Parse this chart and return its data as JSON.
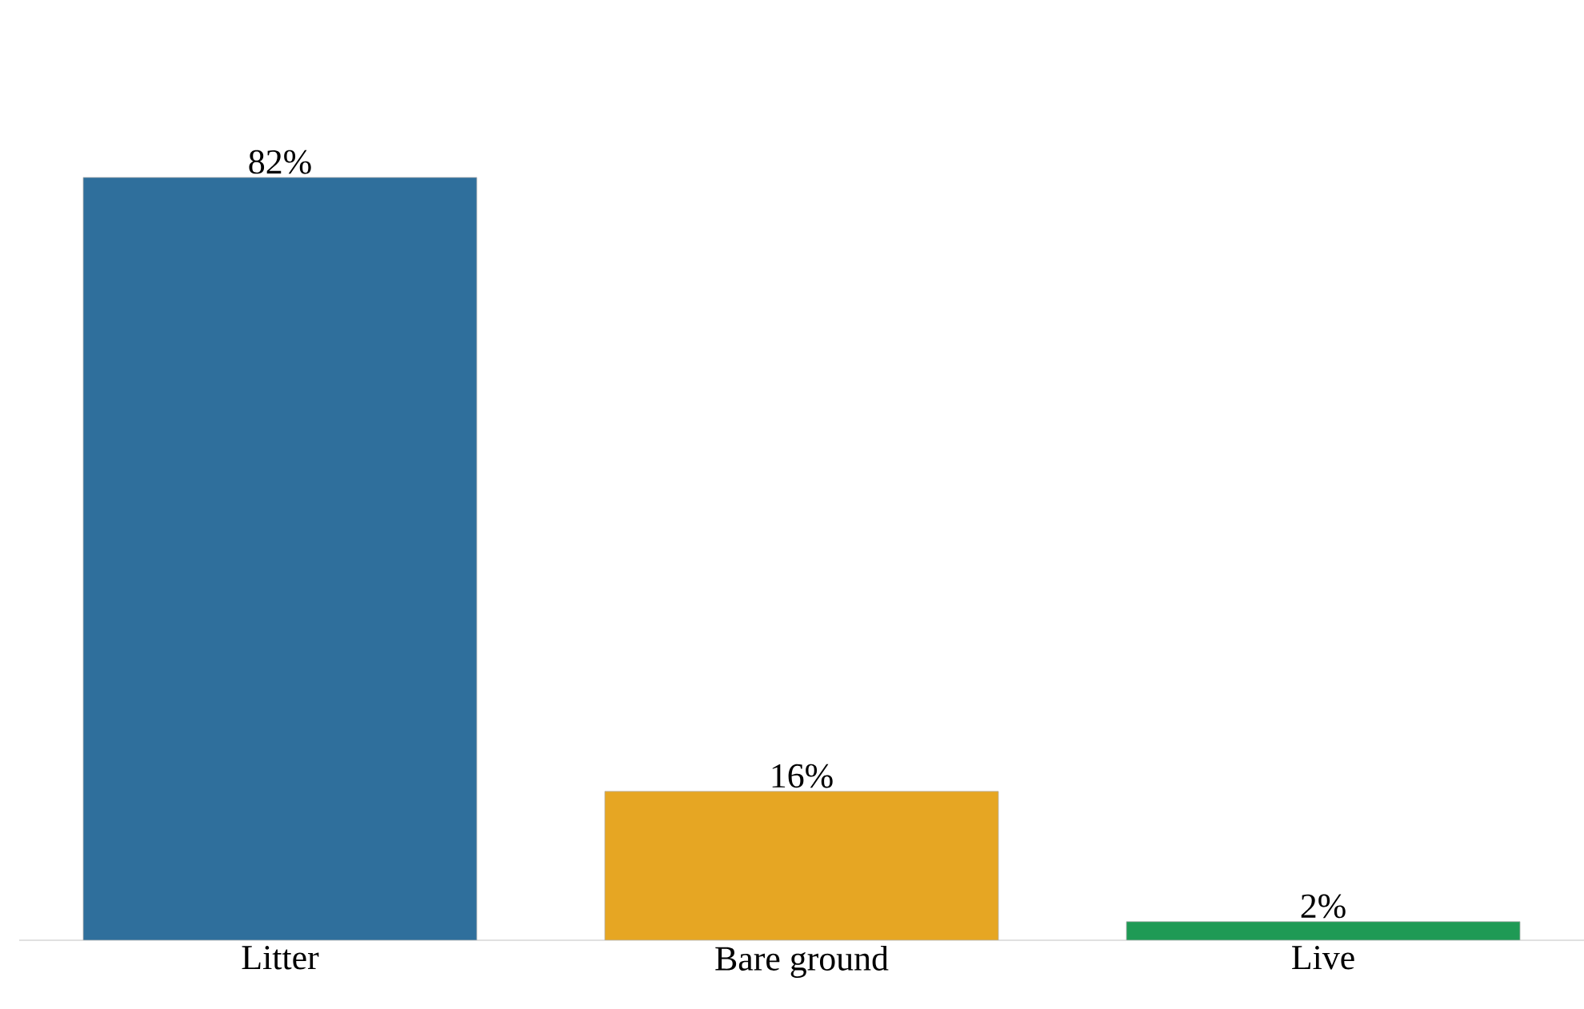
{
  "chart_data": {
    "type": "bar",
    "categories": [
      "Litter",
      "Bare ground",
      "Live"
    ],
    "values": [
      82,
      16,
      2
    ],
    "colors": [
      "#2f6f9c",
      "#e6a623",
      "#1f9a55"
    ],
    "value_labels": [
      "82%",
      "16%",
      "2%"
    ],
    "tick_labels": "x",
    "grid": false
  }
}
